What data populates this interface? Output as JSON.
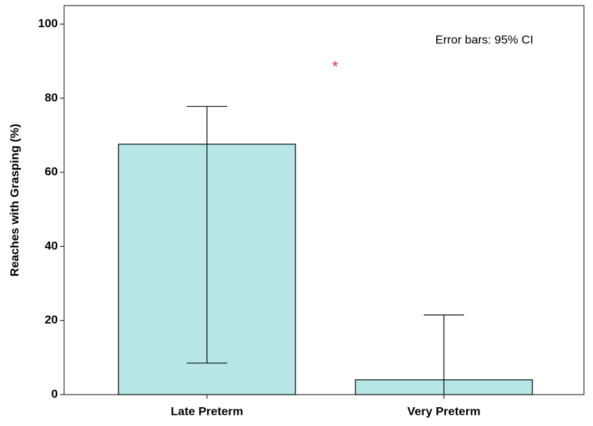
{
  "chart_data": {
    "type": "bar",
    "y_label": "Reaches with Grasping (%)",
    "categories": [
      "Late Preterm",
      "Very Preterm"
    ],
    "values": [
      67.6,
      4.0
    ],
    "ci_low": [
      8.5,
      null
    ],
    "ci_high": [
      77.8,
      21.5
    ],
    "color": "#b6e6e6",
    "ylim": [
      0,
      105
    ],
    "yticks": [
      0,
      20,
      40,
      60,
      80,
      100
    ],
    "annotations": [
      "Error bars: 95% CI",
      "*"
    ]
  }
}
